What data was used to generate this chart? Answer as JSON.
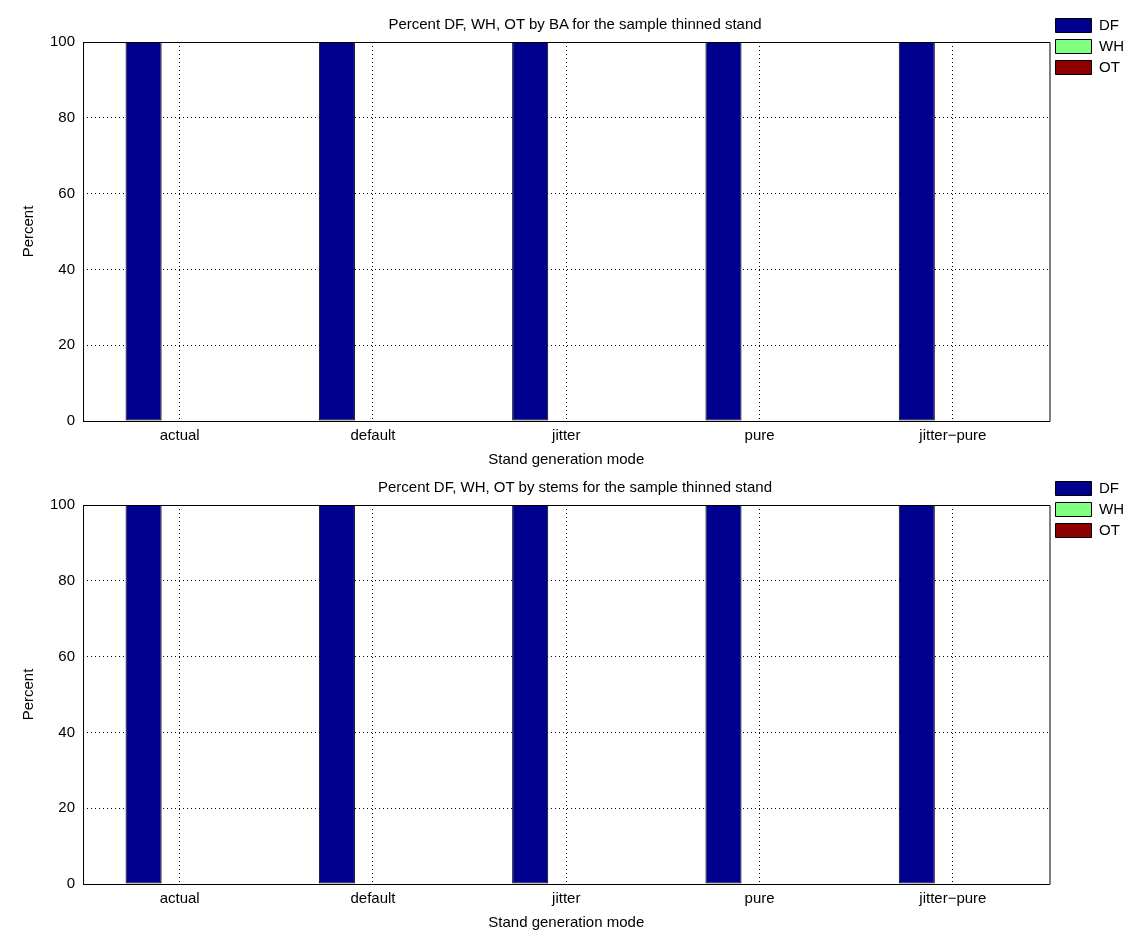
{
  "chart_data": [
    {
      "type": "bar",
      "title": "Percent DF, WH, OT by BA for the sample thinned stand",
      "xlabel": "Stand generation mode",
      "ylabel": "Percent",
      "categories": [
        "actual",
        "default",
        "jitter",
        "pure",
        "jitter−pure"
      ],
      "series": [
        {
          "name": "DF",
          "color": "#00008f",
          "values": [
            100,
            100,
            100,
            100,
            100
          ]
        },
        {
          "name": "WH",
          "color": "#80ff80",
          "values": [
            0,
            0,
            0,
            0,
            0
          ]
        },
        {
          "name": "OT",
          "color": "#8f0000",
          "values": [
            0,
            0,
            0,
            0,
            0
          ]
        }
      ],
      "ylim": [
        0,
        100
      ],
      "yticks": [
        0,
        20,
        40,
        60,
        80,
        100
      ],
      "grid": true,
      "legend": "top right"
    },
    {
      "type": "bar",
      "title": "Percent DF, WH, OT by stems for the sample thinned stand",
      "xlabel": "Stand generation mode",
      "ylabel": "Percent",
      "categories": [
        "actual",
        "default",
        "jitter",
        "pure",
        "jitter−pure"
      ],
      "series": [
        {
          "name": "DF",
          "color": "#00008f",
          "values": [
            100,
            100,
            100,
            100,
            100
          ]
        },
        {
          "name": "WH",
          "color": "#80ff80",
          "values": [
            0,
            0,
            0,
            0,
            0
          ]
        },
        {
          "name": "OT",
          "color": "#8f0000",
          "values": [
            0,
            0,
            0,
            0,
            0
          ]
        }
      ],
      "ylim": [
        0,
        100
      ],
      "yticks": [
        0,
        20,
        40,
        60,
        80,
        100
      ],
      "grid": true,
      "legend": "top right"
    }
  ]
}
